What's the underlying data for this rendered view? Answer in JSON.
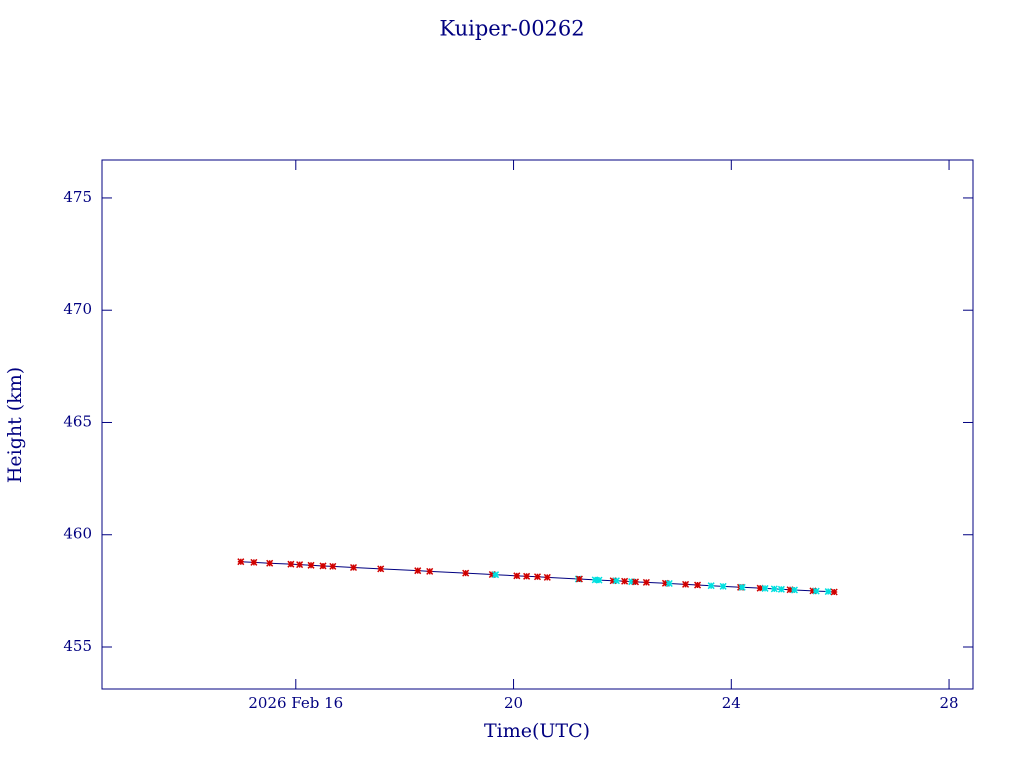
{
  "chart_data": {
    "type": "line",
    "title": "Kuiper-00262",
    "xlabel": "Time(UTC)",
    "ylabel": "Height (km)",
    "xlim": [
      12.44,
      28.44
    ],
    "ylim": [
      453.13,
      476.69
    ],
    "xticks": [
      {
        "value": 16,
        "label": "2026 Feb 16"
      },
      20,
      24,
      28
    ],
    "yticks": [
      455,
      460,
      465,
      470,
      475
    ],
    "series": [
      {
        "color": "#000080",
        "x": [
          14.99,
          15.23,
          15.52,
          15.91,
          16.07,
          16.28,
          16.5,
          16.68,
          17.06,
          17.56,
          18.24,
          18.46,
          19.12,
          19.61,
          19.67,
          20.06,
          20.24,
          20.44,
          20.62,
          21.19,
          21.21,
          21.5,
          21.57,
          21.83,
          21.89,
          22.04,
          22.17,
          22.24,
          22.44,
          22.79,
          22.86,
          23.16,
          23.38,
          23.63,
          23.85,
          24.17,
          24.2,
          24.53,
          24.62,
          24.79,
          24.92,
          25.08,
          25.16,
          25.5,
          25.56,
          25.78,
          25.89
        ],
        "values": [
          458.8,
          458.77,
          458.73,
          458.69,
          458.67,
          458.64,
          458.61,
          458.59,
          458.54,
          458.48,
          458.4,
          458.37,
          458.29,
          458.23,
          458.22,
          458.17,
          458.15,
          458.13,
          458.1,
          458.03,
          458.03,
          457.99,
          457.98,
          457.95,
          457.95,
          457.93,
          457.91,
          457.9,
          457.88,
          457.84,
          457.83,
          457.79,
          457.76,
          457.73,
          457.7,
          457.66,
          457.66,
          457.62,
          457.61,
          457.59,
          457.57,
          457.55,
          457.54,
          457.5,
          457.49,
          457.47,
          457.45
        ],
        "marker_colors": [
          "#d00000",
          "#d00000",
          "#d00000",
          "#d00000",
          "#d00000",
          "#d00000",
          "#d00000",
          "#d00000",
          "#d00000",
          "#d00000",
          "#d00000",
          "#d00000",
          "#d00000",
          "#d00000",
          "#00e0e0",
          "#d00000",
          "#d00000",
          "#d00000",
          "#d00000",
          "#00e0e0",
          "#d00000",
          "#00e0e0",
          "#00e0e0",
          "#d00000",
          "#00e0e0",
          "#d00000",
          "#00e0e0",
          "#d00000",
          "#d00000",
          "#d00000",
          "#00e0e0",
          "#d00000",
          "#d00000",
          "#00e0e0",
          "#00e0e0",
          "#d00000",
          "#00e0e0",
          "#d00000",
          "#00e0e0",
          "#00e0e0",
          "#00e0e0",
          "#d00000",
          "#00e0e0",
          "#d00000",
          "#00e0e0",
          "#00e0e0",
          "#d00000"
        ]
      }
    ]
  }
}
